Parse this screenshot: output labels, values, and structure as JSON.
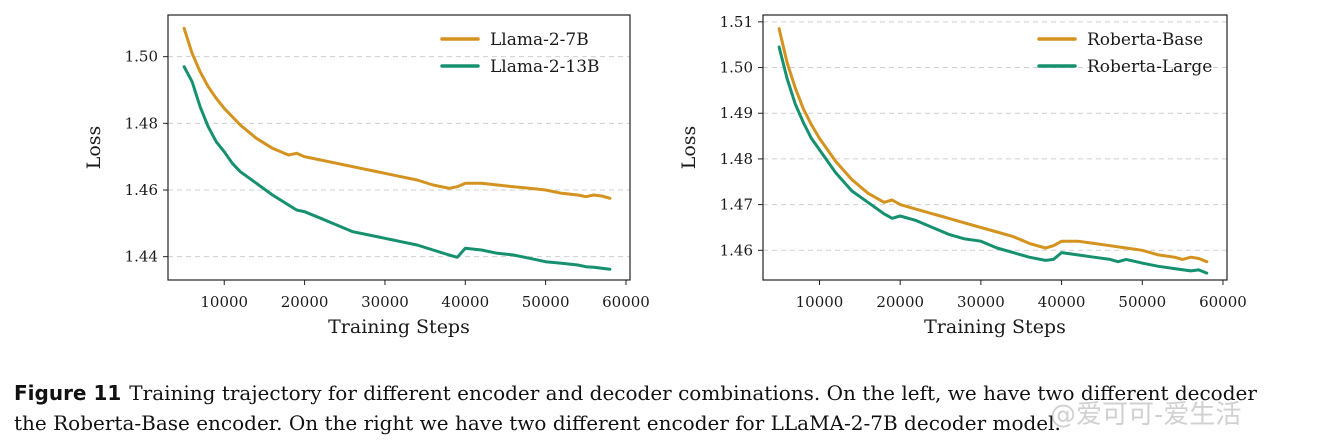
{
  "chart_data": [
    {
      "type": "line",
      "title": "",
      "xlabel": "Training Steps",
      "ylabel": "Loss",
      "xlim": [
        3000,
        60500
      ],
      "ylim": [
        1.433,
        1.5125
      ],
      "xticks": [
        10000,
        20000,
        30000,
        40000,
        50000,
        60000
      ],
      "yticks": [
        1.44,
        1.46,
        1.48,
        1.5
      ],
      "ytick_labels": [
        "1.44",
        "1.46",
        "1.48",
        "1.50"
      ],
      "grid": "horizontal dashed",
      "legend_position": "top-right",
      "series": [
        {
          "name": "Llama-2-7B",
          "color": "#D4921E",
          "x": [
            5000,
            6000,
            7000,
            8000,
            9000,
            10000,
            12000,
            14000,
            16000,
            18000,
            19000,
            20000,
            22000,
            24000,
            25000,
            26000,
            28000,
            30000,
            32000,
            34000,
            36000,
            38000,
            39000,
            40000,
            42000,
            44000,
            46000,
            48000,
            50000,
            52000,
            54000,
            55000,
            56000,
            57000,
            58000
          ],
          "y": [
            1.5085,
            1.501,
            1.4955,
            1.491,
            1.4875,
            1.4845,
            1.4795,
            1.4755,
            1.4725,
            1.4705,
            1.471,
            1.47,
            1.469,
            1.468,
            1.4675,
            1.467,
            1.466,
            1.465,
            1.464,
            1.463,
            1.4615,
            1.4605,
            1.461,
            1.462,
            1.462,
            1.4615,
            1.461,
            1.4605,
            1.46,
            1.459,
            1.4585,
            1.458,
            1.4585,
            1.4582,
            1.4575
          ]
        },
        {
          "name": "Llama-2-13B",
          "color": "#16916F",
          "x": [
            5000,
            6000,
            7000,
            8000,
            9000,
            10000,
            11000,
            12000,
            14000,
            16000,
            18000,
            19000,
            20000,
            22000,
            24000,
            26000,
            28000,
            30000,
            31000,
            32000,
            34000,
            36000,
            38000,
            39000,
            40000,
            42000,
            44000,
            46000,
            48000,
            50000,
            52000,
            54000,
            55000,
            56000,
            57000,
            58000
          ],
          "y": [
            1.497,
            1.4925,
            1.485,
            1.479,
            1.4745,
            1.4715,
            1.468,
            1.4655,
            1.462,
            1.4585,
            1.4555,
            1.454,
            1.4535,
            1.4515,
            1.4495,
            1.4475,
            1.4465,
            1.4455,
            1.445,
            1.4445,
            1.4435,
            1.442,
            1.4405,
            1.4398,
            1.4425,
            1.442,
            1.441,
            1.4405,
            1.4395,
            1.4385,
            1.438,
            1.4375,
            1.437,
            1.4368,
            1.4365,
            1.4362
          ]
        }
      ]
    },
    {
      "type": "line",
      "title": "",
      "xlabel": "Training Steps",
      "ylabel": "Loss",
      "xlim": [
        3000,
        60500
      ],
      "ylim": [
        1.4535,
        1.5115
      ],
      "xticks": [
        10000,
        20000,
        30000,
        40000,
        50000,
        60000
      ],
      "yticks": [
        1.46,
        1.47,
        1.48,
        1.49,
        1.5,
        1.51
      ],
      "ytick_labels": [
        "1.46",
        "1.47",
        "1.48",
        "1.49",
        "1.50",
        "1.51"
      ],
      "grid": "horizontal dashed",
      "legend_position": "top-right",
      "series": [
        {
          "name": "Roberta-Base",
          "color": "#D4921E",
          "x": [
            5000,
            6000,
            7000,
            8000,
            9000,
            10000,
            12000,
            14000,
            16000,
            18000,
            19000,
            20000,
            22000,
            24000,
            25000,
            26000,
            28000,
            30000,
            32000,
            34000,
            36000,
            38000,
            39000,
            40000,
            42000,
            44000,
            46000,
            48000,
            50000,
            52000,
            54000,
            55000,
            56000,
            57000,
            58000
          ],
          "y": [
            1.5085,
            1.501,
            1.4955,
            1.491,
            1.4875,
            1.4845,
            1.4795,
            1.4755,
            1.4725,
            1.4705,
            1.471,
            1.47,
            1.469,
            1.468,
            1.4675,
            1.467,
            1.466,
            1.465,
            1.464,
            1.463,
            1.4615,
            1.4605,
            1.461,
            1.462,
            1.462,
            1.4615,
            1.461,
            1.4605,
            1.46,
            1.459,
            1.4585,
            1.458,
            1.4585,
            1.4582,
            1.4575
          ]
        },
        {
          "name": "Roberta-Large",
          "color": "#16916F",
          "x": [
            5000,
            6000,
            7000,
            8000,
            9000,
            10000,
            12000,
            14000,
            16000,
            18000,
            19000,
            20000,
            22000,
            24000,
            26000,
            28000,
            30000,
            32000,
            34000,
            36000,
            38000,
            39000,
            40000,
            42000,
            44000,
            46000,
            47000,
            48000,
            50000,
            52000,
            54000,
            56000,
            57000,
            58000
          ],
          "y": [
            1.5045,
            1.4975,
            1.492,
            1.488,
            1.4845,
            1.482,
            1.477,
            1.473,
            1.4705,
            1.468,
            1.467,
            1.4675,
            1.4665,
            1.465,
            1.4635,
            1.4625,
            1.462,
            1.4605,
            1.4595,
            1.4585,
            1.4578,
            1.458,
            1.4595,
            1.459,
            1.4585,
            1.458,
            1.4575,
            1.458,
            1.4572,
            1.4565,
            1.456,
            1.4555,
            1.4557,
            1.455
          ]
        }
      ]
    }
  ],
  "caption": {
    "label": "Figure 11",
    "line1": "Training trajectory for different encoder and decoder combinations. On the left, we have two different decoder",
    "line2": "the Roberta-Base encoder. On the right we have two different encoder for LLaMA-2-7B decoder model."
  },
  "watermark": "@爱可可-爱生活"
}
